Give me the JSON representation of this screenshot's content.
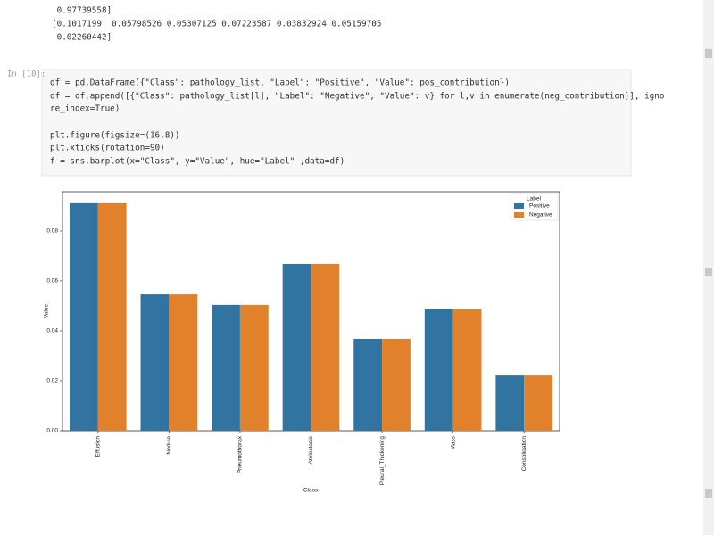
{
  "output": {
    "lines": [
      " 0.97739558]",
      "[0.1017199  0.05798526 0.05307125 0.07223587 0.03832924 0.05159705",
      " 0.02260442]"
    ]
  },
  "cell": {
    "prompt": "In [10]:",
    "code": [
      "df = pd.DataFrame({\"Class\": pathology_list, \"Label\": \"Positive\", \"Value\": pos_contribution})",
      "df = df.append([{\"Class\": pathology_list[l], \"Label\": \"Negative\", \"Value\": v} for l,v in enumerate(neg_contribution)], igno",
      "re_index=True)",
      "plt.figure(figsize=(16,8))",
      "plt.xticks(rotation=90)",
      "f = sns.barplot(x=\"Class\", y=\"Value\", hue=\"Label\" ,data=df)"
    ]
  },
  "chart_data": {
    "type": "bar",
    "x_label": "Class",
    "y_label": "Value",
    "legend_title": "Label",
    "legend": "upper right",
    "categories": [
      "Effusion",
      "Nodule",
      "Pneumothorax",
      "Atelectasis",
      "Pleural_Thickening",
      "Mass",
      "Consolidation"
    ],
    "series": [
      {
        "name": "Positive",
        "color": "#3274a1",
        "values": [
          0.0911,
          0.0546,
          0.0504,
          0.0668,
          0.0368,
          0.0489,
          0.0221
        ]
      },
      {
        "name": "Negative",
        "color": "#e1812c",
        "values": [
          0.0911,
          0.0546,
          0.0504,
          0.0668,
          0.0368,
          0.0489,
          0.0221
        ]
      }
    ],
    "ylim": [
      0,
      0.0957
    ],
    "yticks": [
      {
        "value": 0,
        "label": "0.00"
      },
      {
        "value": 0.02,
        "label": "0.02"
      },
      {
        "value": 0.04,
        "label": "0.04"
      },
      {
        "value": 0.06,
        "label": "0.06"
      },
      {
        "value": 0.08,
        "label": "0.08"
      }
    ]
  }
}
